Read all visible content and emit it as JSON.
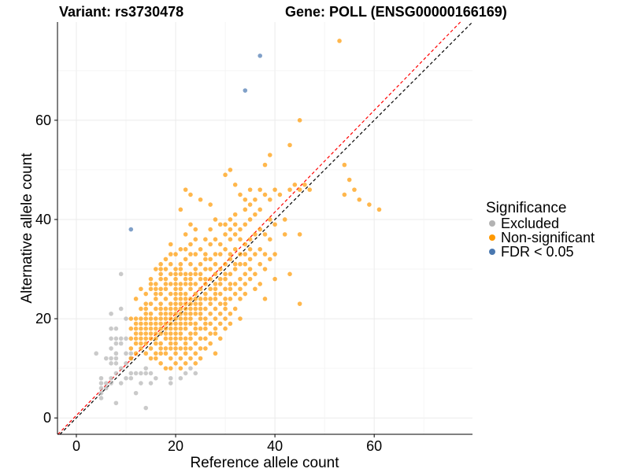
{
  "chart_data": {
    "type": "scatter",
    "title_left": "Variant: rs3730478",
    "title_right": "Gene: POLL (ENSG00000166169)",
    "xlabel": "Reference allele count",
    "ylabel": "Alternative allele count",
    "xlim": [
      -3.8,
      79.8
    ],
    "ylim": [
      -3.3,
      79.8
    ],
    "xticks": [
      0,
      20,
      40,
      60
    ],
    "yticks": [
      0,
      20,
      40,
      60
    ],
    "grid": true,
    "legend": {
      "title": "Significance",
      "placement": "right"
    },
    "reference_lines": [
      {
        "name": "y = x",
        "slope": 1,
        "intercept": 0,
        "color": "#000000",
        "style": "dashed"
      },
      {
        "name": "fit",
        "slope": 1.025,
        "intercept": 0.5,
        "color": "#ff0000",
        "style": "dashed"
      }
    ],
    "series": [
      {
        "name": "Excluded",
        "color": "#b3b3b3",
        "points": [
          [
            5,
            4
          ],
          [
            5,
            5
          ],
          [
            5,
            6
          ],
          [
            6,
            6
          ],
          [
            5,
            7
          ],
          [
            6,
            7
          ],
          [
            7,
            7
          ],
          [
            5,
            8
          ],
          [
            7,
            8
          ],
          [
            8,
            9
          ],
          [
            4,
            13
          ],
          [
            7,
            11
          ],
          [
            8,
            11
          ],
          [
            6,
            12
          ],
          [
            7,
            12
          ],
          [
            8,
            12
          ],
          [
            8,
            13
          ],
          [
            7,
            14
          ],
          [
            9,
            15
          ],
          [
            8,
            15
          ],
          [
            7,
            16
          ],
          [
            8,
            16
          ],
          [
            9,
            16
          ],
          [
            10,
            16
          ],
          [
            8,
            18
          ],
          [
            7,
            18
          ],
          [
            7,
            21
          ],
          [
            9,
            22
          ],
          [
            9,
            29
          ],
          [
            10,
            20
          ],
          [
            12,
            9
          ],
          [
            13,
            9
          ],
          [
            14,
            9
          ],
          [
            14,
            10
          ],
          [
            15,
            9
          ],
          [
            16,
            8
          ],
          [
            15,
            7
          ],
          [
            13,
            7
          ],
          [
            12,
            5
          ],
          [
            10,
            8
          ],
          [
            8,
            3
          ],
          [
            14,
            2
          ],
          [
            19,
            7
          ],
          [
            19,
            8
          ],
          [
            21,
            8
          ],
          [
            22,
            9
          ],
          [
            24,
            9
          ],
          [
            23,
            10
          ],
          [
            9,
            10
          ],
          [
            10,
            11
          ],
          [
            11,
            9
          ],
          [
            11,
            8
          ],
          [
            9,
            7
          ],
          [
            10,
            13
          ],
          [
            11,
            13
          ],
          [
            11,
            12
          ]
        ]
      },
      {
        "name": "Non-significant",
        "color": "#ff9900",
        "columns": [
          {
            "x": 11,
            "ys": [
              12,
              14,
              16,
              18,
              20
            ]
          },
          {
            "x": 12,
            "ys": [
              13,
              15,
              16,
              17,
              18,
              19,
              20,
              24
            ]
          },
          {
            "x": 13,
            "ys": [
              14,
              15,
              16,
              17,
              18,
              19,
              20,
              22,
              26
            ]
          },
          {
            "x": 14,
            "ys": [
              13,
              15,
              16,
              17,
              18,
              19,
              20,
              21,
              22,
              23,
              25
            ]
          },
          {
            "x": 15,
            "ys": [
              12,
              14,
              16,
              17,
              18,
              19,
              20,
              21,
              23,
              26,
              27,
              28
            ]
          },
          {
            "x": 16,
            "ys": [
              12,
              13,
              15,
              16,
              17,
              18,
              19,
              20,
              22,
              24,
              25,
              26,
              27,
              30
            ]
          },
          {
            "x": 17,
            "ys": [
              11,
              13,
              14,
              15,
              17,
              18,
              19,
              20,
              21,
              22,
              23,
              25,
              26,
              28,
              29,
              30,
              31
            ]
          },
          {
            "x": 18,
            "ys": [
              10,
              13,
              14,
              16,
              17,
              18,
              19,
              20,
              21,
              22,
              24,
              26,
              27,
              28,
              30,
              32
            ]
          },
          {
            "x": 19,
            "ys": [
              10,
              12,
              14,
              15,
              16,
              17,
              18,
              19,
              20,
              21,
              22,
              23,
              25,
              27,
              29,
              31,
              33,
              35
            ]
          },
          {
            "x": 20,
            "ys": [
              11,
              13,
              14,
              15,
              16,
              17,
              18,
              19,
              20,
              21,
              22,
              23,
              24,
              25,
              26,
              27,
              28,
              29,
              30,
              33
            ]
          },
          {
            "x": 21,
            "ys": [
              10,
              12,
              14,
              16,
              17,
              18,
              19,
              20,
              21,
              22,
              23,
              24,
              25,
              26,
              27,
              29,
              30,
              31,
              34,
              42
            ]
          },
          {
            "x": 22,
            "ys": [
              11,
              13,
              14,
              15,
              16,
              18,
              19,
              20,
              21,
              22,
              23,
              24,
              25,
              27,
              28,
              29,
              32,
              34,
              37,
              46
            ]
          },
          {
            "x": 23,
            "ys": [
              12,
              14,
              16,
              17,
              19,
              20,
              21,
              22,
              23,
              24,
              26,
              27,
              28,
              29,
              31,
              33,
              35,
              39,
              45
            ]
          },
          {
            "x": 24,
            "ys": [
              11,
              13,
              15,
              17,
              18,
              19,
              21,
              22,
              23,
              24,
              25,
              27,
              29,
              30,
              33,
              36,
              38
            ]
          },
          {
            "x": 25,
            "ys": [
              12,
              14,
              16,
              18,
              20,
              21,
              22,
              23,
              24,
              26,
              28,
              29,
              31,
              34,
              44
            ]
          },
          {
            "x": 26,
            "ys": [
              14,
              16,
              18,
              19,
              20,
              22,
              24,
              25,
              27,
              28,
              30,
              32,
              33,
              36
            ]
          },
          {
            "x": 27,
            "ys": [
              15,
              17,
              19,
              21,
              23,
              24,
              26,
              28,
              30,
              32,
              35,
              38,
              43
            ]
          },
          {
            "x": 28,
            "ys": [
              13,
              17,
              18,
              20,
              22,
              24,
              25,
              26,
              27,
              29,
              31,
              33,
              36,
              40
            ]
          },
          {
            "x": 29,
            "ys": [
              16,
              19,
              21,
              23,
              25,
              27,
              28,
              30,
              33,
              35,
              39
            ]
          },
          {
            "x": 30,
            "ys": [
              18,
              20,
              22,
              23,
              24,
              26,
              28,
              29,
              31,
              34,
              37,
              39,
              49
            ]
          },
          {
            "x": 31,
            "ys": [
              19,
              21,
              24,
              26,
              27,
              29,
              32,
              33,
              36,
              38,
              40,
              50
            ]
          },
          {
            "x": 32,
            "ys": [
              22,
              25,
              27,
              30,
              31,
              34,
              37,
              39,
              41,
              47
            ]
          },
          {
            "x": 33,
            "ys": [
              20,
              24,
              26,
              28,
              31,
              33,
              36,
              38,
              45
            ]
          },
          {
            "x": 34,
            "ys": [
              25,
              27,
              29,
              31,
              33,
              35,
              39,
              42,
              44
            ]
          },
          {
            "x": 35,
            "ys": [
              28,
              30,
              32,
              34,
              36,
              40,
              43,
              46
            ]
          },
          {
            "x": 36,
            "ys": [
              26,
              29,
              33,
              37,
              41,
              44
            ]
          },
          {
            "x": 37,
            "ys": [
              27,
              31,
              34,
              38,
              42,
              46
            ]
          },
          {
            "x": 38,
            "ys": [
              24,
              30,
              33,
              37,
              45,
              51
            ]
          },
          {
            "x": 39,
            "ys": [
              32,
              36,
              40,
              44,
              53
            ]
          },
          {
            "x": 40,
            "ys": [
              28,
              33,
              39,
              46
            ]
          }
        ],
        "points": [
          [
            45,
            60
          ],
          [
            43,
            55
          ],
          [
            53,
            76
          ],
          [
            44,
            47
          ],
          [
            45,
            46
          ],
          [
            46,
            47
          ],
          [
            47,
            46
          ],
          [
            43,
            46
          ],
          [
            42,
            37
          ],
          [
            45,
            37
          ],
          [
            43,
            29
          ],
          [
            45,
            23
          ],
          [
            54,
            51
          ],
          [
            55,
            48
          ],
          [
            56,
            46
          ],
          [
            54,
            45
          ],
          [
            57,
            44
          ],
          [
            59,
            43
          ],
          [
            61,
            42
          ],
          [
            42,
            40
          ],
          [
            41,
            45
          ]
        ]
      },
      {
        "name": "FDR < 0.05",
        "color": "#4a78b0",
        "points": [
          [
            11,
            38
          ],
          [
            34,
            66
          ],
          [
            37,
            73
          ]
        ]
      }
    ]
  }
}
